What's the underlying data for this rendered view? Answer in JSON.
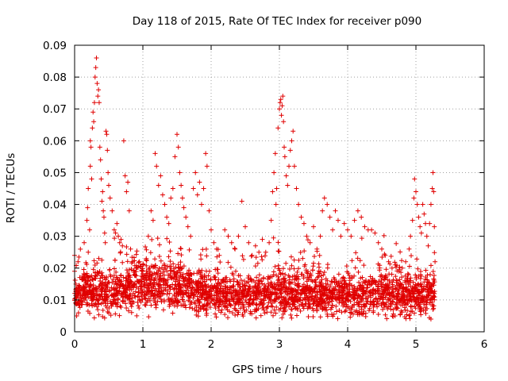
{
  "chart_data": {
    "type": "scatter",
    "title": "Day 118 of 2015, Rate Of TEC Index for receiver p090",
    "xlabel": "GPS time / hours",
    "ylabel": "ROTI / TECUs",
    "xlim": [
      0,
      6
    ],
    "ylim": [
      0,
      0.09
    ],
    "x_ticks": [
      "0",
      "1",
      "2",
      "3",
      "4",
      "5",
      "6"
    ],
    "y_ticks": [
      "0",
      "0.01",
      "0.02",
      "0.03",
      "0.04",
      "0.05",
      "0.06",
      "0.07",
      "0.08",
      "0.09"
    ],
    "x_tick_values": [
      0,
      1,
      2,
      3,
      4,
      5,
      6
    ],
    "y_tick_values": [
      0,
      0.01,
      0.02,
      0.03,
      0.04,
      0.05,
      0.06,
      0.07,
      0.08,
      0.09
    ],
    "grid": true,
    "marker": "+",
    "marker_color": "#e00000",
    "series": [
      {
        "name": "ROTI",
        "points": [
          [
            0.0,
            0.024
          ],
          [
            0.0,
            0.019
          ],
          [
            0.02,
            0.015
          ],
          [
            0.02,
            0.009
          ],
          [
            0.03,
            0.005
          ],
          [
            0.03,
            0.011
          ],
          [
            0.05,
            0.022
          ],
          [
            0.06,
            0.013
          ],
          [
            0.14,
            0.028
          ],
          [
            0.15,
            0.018
          ],
          [
            0.17,
            0.012
          ],
          [
            0.18,
            0.035
          ],
          [
            0.19,
            0.039
          ],
          [
            0.2,
            0.045
          ],
          [
            0.2,
            0.025
          ],
          [
            0.21,
            0.014
          ],
          [
            0.22,
            0.032
          ],
          [
            0.23,
            0.052
          ],
          [
            0.23,
            0.06
          ],
          [
            0.24,
            0.058
          ],
          [
            0.25,
            0.048
          ],
          [
            0.26,
            0.064
          ],
          [
            0.27,
            0.069
          ],
          [
            0.28,
            0.066
          ],
          [
            0.29,
            0.072
          ],
          [
            0.3,
            0.08
          ],
          [
            0.31,
            0.083
          ],
          [
            0.32,
            0.086
          ],
          [
            0.33,
            0.078
          ],
          [
            0.34,
            0.074
          ],
          [
            0.35,
            0.076
          ],
          [
            0.36,
            0.072
          ],
          [
            0.37,
            0.058
          ],
          [
            0.38,
            0.054
          ],
          [
            0.39,
            0.048
          ],
          [
            0.4,
            0.041
          ],
          [
            0.41,
            0.044
          ],
          [
            0.42,
            0.038
          ],
          [
            0.43,
            0.036
          ],
          [
            0.44,
            0.031
          ],
          [
            0.45,
            0.028
          ],
          [
            0.46,
            0.063
          ],
          [
            0.47,
            0.062
          ],
          [
            0.48,
            0.057
          ],
          [
            0.49,
            0.05
          ],
          [
            0.5,
            0.046
          ],
          [
            0.52,
            0.042
          ],
          [
            0.55,
            0.038
          ],
          [
            0.58,
            0.032
          ],
          [
            0.6,
            0.031
          ],
          [
            0.62,
            0.034
          ],
          [
            0.64,
            0.03
          ],
          [
            0.66,
            0.028
          ],
          [
            0.68,
            0.029
          ],
          [
            0.7,
            0.027
          ],
          [
            0.72,
            0.06
          ],
          [
            0.74,
            0.049
          ],
          [
            0.76,
            0.044
          ],
          [
            0.78,
            0.047
          ],
          [
            0.8,
            0.038
          ],
          [
            0.82,
            0.026
          ],
          [
            0.85,
            0.022
          ],
          [
            0.9,
            0.02
          ],
          [
            0.95,
            0.022
          ],
          [
            1.0,
            0.019
          ],
          [
            1.05,
            0.023
          ],
          [
            1.08,
            0.03
          ],
          [
            1.12,
            0.038
          ],
          [
            1.15,
            0.035
          ],
          [
            1.18,
            0.056
          ],
          [
            1.2,
            0.052
          ],
          [
            1.23,
            0.046
          ],
          [
            1.26,
            0.049
          ],
          [
            1.29,
            0.043
          ],
          [
            1.32,
            0.04
          ],
          [
            1.35,
            0.036
          ],
          [
            1.38,
            0.034
          ],
          [
            1.41,
            0.042
          ],
          [
            1.44,
            0.045
          ],
          [
            1.47,
            0.055
          ],
          [
            1.5,
            0.062
          ],
          [
            1.52,
            0.058
          ],
          [
            1.54,
            0.05
          ],
          [
            1.56,
            0.046
          ],
          [
            1.58,
            0.042
          ],
          [
            1.6,
            0.039
          ],
          [
            1.63,
            0.036
          ],
          [
            1.66,
            0.033
          ],
          [
            1.7,
            0.03
          ],
          [
            1.74,
            0.045
          ],
          [
            1.77,
            0.05
          ],
          [
            1.8,
            0.043
          ],
          [
            1.83,
            0.047
          ],
          [
            1.86,
            0.04
          ],
          [
            1.89,
            0.045
          ],
          [
            1.92,
            0.056
          ],
          [
            1.94,
            0.052
          ],
          [
            1.97,
            0.038
          ],
          [
            2.0,
            0.032
          ],
          [
            2.04,
            0.028
          ],
          [
            2.08,
            0.026
          ],
          [
            2.12,
            0.024
          ],
          [
            2.2,
            0.032
          ],
          [
            2.25,
            0.03
          ],
          [
            2.3,
            0.028
          ],
          [
            2.35,
            0.026
          ],
          [
            2.4,
            0.03
          ],
          [
            2.45,
            0.041
          ],
          [
            2.5,
            0.033
          ],
          [
            2.55,
            0.028
          ],
          [
            2.6,
            0.024
          ],
          [
            2.65,
            0.027
          ],
          [
            2.7,
            0.025
          ],
          [
            2.75,
            0.029
          ],
          [
            2.8,
            0.025
          ],
          [
            2.85,
            0.028
          ],
          [
            2.88,
            0.035
          ],
          [
            2.9,
            0.044
          ],
          [
            2.92,
            0.05
          ],
          [
            2.94,
            0.056
          ],
          [
            2.95,
            0.04
          ],
          [
            2.96,
            0.045
          ],
          [
            2.98,
            0.064
          ],
          [
            3.0,
            0.07
          ],
          [
            3.01,
            0.072
          ],
          [
            3.02,
            0.073
          ],
          [
            3.03,
            0.068
          ],
          [
            3.04,
            0.071
          ],
          [
            3.05,
            0.074
          ],
          [
            3.06,
            0.066
          ],
          [
            3.07,
            0.058
          ],
          [
            3.08,
            0.055
          ],
          [
            3.1,
            0.049
          ],
          [
            3.12,
            0.046
          ],
          [
            3.14,
            0.052
          ],
          [
            3.16,
            0.057
          ],
          [
            3.18,
            0.06
          ],
          [
            3.2,
            0.063
          ],
          [
            3.22,
            0.052
          ],
          [
            3.25,
            0.045
          ],
          [
            3.28,
            0.04
          ],
          [
            3.32,
            0.036
          ],
          [
            3.36,
            0.034
          ],
          [
            3.4,
            0.03
          ],
          [
            3.45,
            0.028
          ],
          [
            3.5,
            0.033
          ],
          [
            3.55,
            0.026
          ],
          [
            3.6,
            0.03
          ],
          [
            3.63,
            0.038
          ],
          [
            3.66,
            0.042
          ],
          [
            3.7,
            0.04
          ],
          [
            3.74,
            0.036
          ],
          [
            3.78,
            0.032
          ],
          [
            3.82,
            0.038
          ],
          [
            3.86,
            0.035
          ],
          [
            3.9,
            0.03
          ],
          [
            3.95,
            0.034
          ],
          [
            4.0,
            0.032
          ],
          [
            4.05,
            0.03
          ],
          [
            4.1,
            0.035
          ],
          [
            4.15,
            0.038
          ],
          [
            4.2,
            0.036
          ],
          [
            4.25,
            0.033
          ],
          [
            4.3,
            0.032
          ],
          [
            4.35,
            0.032
          ],
          [
            4.4,
            0.031
          ],
          [
            4.45,
            0.028
          ],
          [
            4.5,
            0.026
          ],
          [
            4.55,
            0.024
          ],
          [
            4.6,
            0.022
          ],
          [
            4.65,
            0.02
          ],
          [
            4.7,
            0.021
          ],
          [
            4.75,
            0.019
          ],
          [
            4.8,
            0.02
          ],
          [
            4.85,
            0.022
          ],
          [
            4.9,
            0.026
          ],
          [
            4.92,
            0.03
          ],
          [
            4.95,
            0.035
          ],
          [
            4.97,
            0.042
          ],
          [
            4.98,
            0.048
          ],
          [
            5.0,
            0.044
          ],
          [
            5.02,
            0.04
          ],
          [
            5.04,
            0.036
          ],
          [
            5.06,
            0.033
          ],
          [
            5.08,
            0.031
          ],
          [
            5.1,
            0.04
          ],
          [
            5.12,
            0.037
          ],
          [
            5.14,
            0.034
          ],
          [
            5.16,
            0.03
          ],
          [
            5.18,
            0.027
          ],
          [
            5.2,
            0.034
          ],
          [
            5.22,
            0.04
          ],
          [
            5.24,
            0.045
          ],
          [
            5.25,
            0.05
          ],
          [
            5.26,
            0.044
          ],
          [
            5.27,
            0.033
          ],
          [
            5.28,
            0.022
          ],
          [
            5.27,
            0.012
          ],
          [
            5.25,
            0.007
          ],
          [
            5.22,
            0.004
          ]
        ],
        "baseline_profile": {
          "x": [
            0.0,
            0.2,
            0.5,
            1.0,
            1.5,
            2.0,
            2.5,
            3.0,
            3.5,
            4.0,
            4.5,
            5.0,
            5.28
          ],
          "center": [
            0.012,
            0.013,
            0.012,
            0.015,
            0.014,
            0.012,
            0.011,
            0.012,
            0.012,
            0.011,
            0.012,
            0.011,
            0.012
          ],
          "spread": [
            0.005,
            0.006,
            0.006,
            0.007,
            0.006,
            0.006,
            0.005,
            0.006,
            0.006,
            0.006,
            0.006,
            0.006,
            0.006
          ],
          "floor": 0.004,
          "density_per_hour": 520
        }
      }
    ]
  }
}
